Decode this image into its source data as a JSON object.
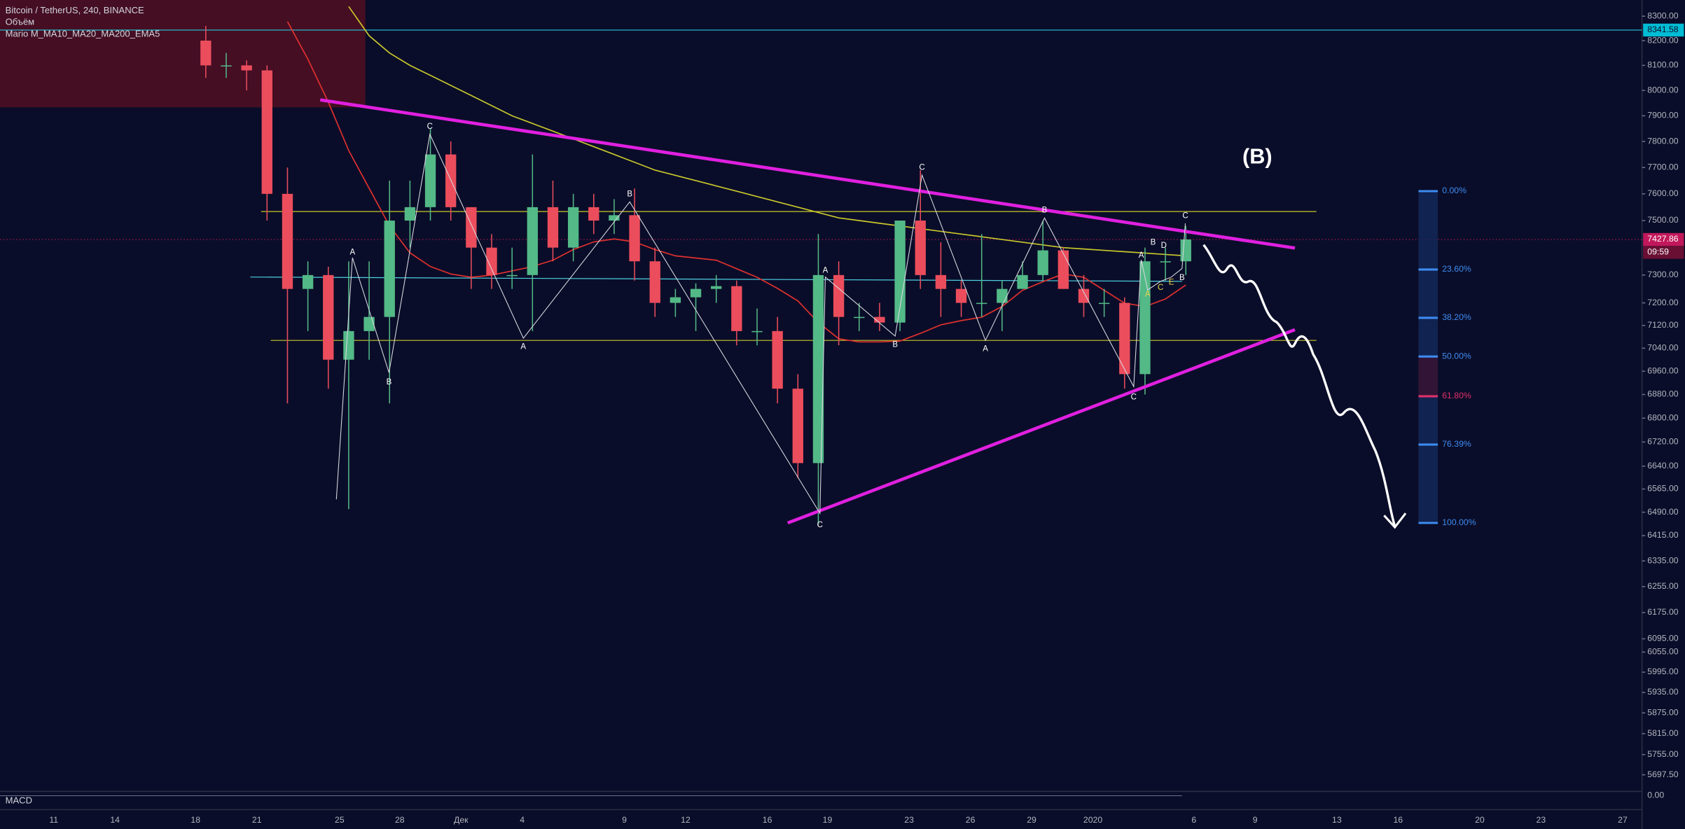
{
  "chart_data": {
    "type": "candlestick",
    "title": "Bitcoin / TetherUS, 240, BINANCE",
    "subtitle": "Объём",
    "indicator_label": "Mario M_MA10_MA20_MA200_EMA5",
    "annotation": "(B)",
    "lower_pane_label": "MACD",
    "lower_pane_tick": "0.00",
    "up_color": "#53b987",
    "down_color": "#eb4d5c",
    "open": [
      8200,
      8100,
      8100,
      8080,
      7600,
      7250,
      7300,
      7000,
      7100,
      7150,
      7500,
      7550,
      7750,
      7550,
      7400,
      7300,
      7300,
      7550,
      7400,
      7550,
      7500,
      7520,
      7350,
      7200,
      7220,
      7250,
      7260,
      7100,
      7100,
      6900,
      6650,
      7300,
      7150,
      7150,
      7130,
      7500,
      7300,
      7250,
      7200,
      7200,
      7250,
      7300,
      7390,
      7250,
      7200,
      7200,
      6950,
      7350,
      7350
    ],
    "high": [
      8260,
      8150,
      8120,
      8100,
      7700,
      7350,
      7330,
      7350,
      7350,
      7650,
      7650,
      7850,
      7800,
      7550,
      7450,
      7400,
      7750,
      7650,
      7600,
      7600,
      7580,
      7620,
      7400,
      7250,
      7270,
      7300,
      7280,
      7180,
      7150,
      6950,
      7450,
      7350,
      7200,
      7200,
      7500,
      7690,
      7420,
      7280,
      7450,
      7280,
      7350,
      7500,
      7400,
      7300,
      7250,
      7220,
      7400,
      7400,
      7480
    ],
    "low": [
      8050,
      8050,
      8000,
      7500,
      6850,
      7100,
      6900,
      6500,
      7000,
      6850,
      7400,
      7500,
      7500,
      7250,
      7250,
      7250,
      7100,
      7350,
      7350,
      7450,
      7450,
      7280,
      7150,
      7150,
      7100,
      7200,
      7050,
      7050,
      6850,
      6600,
      6450,
      7050,
      7100,
      7100,
      7100,
      7250,
      7150,
      7150,
      7150,
      7100,
      7250,
      7280,
      7250,
      7150,
      7150,
      6900,
      6880,
      7280,
      7300
    ],
    "close": [
      8100,
      8100,
      8080,
      7600,
      7250,
      7300,
      7000,
      7100,
      7150,
      7500,
      7550,
      7750,
      7550,
      7400,
      7300,
      7300,
      7550,
      7400,
      7550,
      7500,
      7520,
      7350,
      7200,
      7220,
      7250,
      7260,
      7100,
      7100,
      6900,
      6650,
      7300,
      7150,
      7150,
      7130,
      7500,
      7300,
      7250,
      7200,
      7200,
      7250,
      7300,
      7390,
      7250,
      7200,
      7200,
      6950,
      7350,
      7350,
      7430
    ],
    "lines": [
      {
        "color": "#e0312f",
        "values": [
          null,
          null,
          null,
          null,
          8278,
          8125,
          7954,
          7765,
          7621,
          7480,
          7381,
          7331,
          7304,
          7292,
          7300,
          7315,
          7331,
          7354,
          7393,
          7421,
          7432,
          7421,
          7393,
          7370,
          7362,
          7354,
          7323,
          7292,
          7252,
          7207,
          7130,
          7073,
          7062,
          7062,
          7065,
          7092,
          7122,
          7137,
          7149,
          7187,
          7245,
          7276,
          7304,
          7292,
          7245,
          7199,
          7187,
          7214,
          7264
        ]
      },
      {
        "color": "#c9c72c",
        "values": [
          null,
          null,
          null,
          null,
          null,
          null,
          null,
          8340,
          8220,
          8150,
          8100,
          8060,
          8020,
          7980,
          7940,
          7900,
          7870,
          7840,
          7810,
          7780,
          7750,
          7720,
          7690,
          7670,
          7650,
          7630,
          7610,
          7590,
          7570,
          7550,
          7530,
          7510,
          7500,
          7490,
          7480,
          7470,
          7460,
          7450,
          7440,
          7430,
          7420,
          7410,
          7400,
          7395,
          7390,
          7385,
          7380,
          7375,
          7370
        ]
      }
    ],
    "log_scale": true,
    "grid": false,
    "ylim": [
      5690,
      8367
    ],
    "yticks": [
      {
        "value": 8300,
        "label": "8300.00"
      },
      {
        "value": 8200,
        "label": "8200.00"
      },
      {
        "value": 8100,
        "label": "8100.00"
      },
      {
        "value": 8000,
        "label": "8000.00"
      },
      {
        "value": 7900,
        "label": "7900.00"
      },
      {
        "value": 7800,
        "label": "7800.00"
      },
      {
        "value": 7700,
        "label": "7700.00"
      },
      {
        "value": 7600,
        "label": "7600.00"
      },
      {
        "value": 7500,
        "label": "7500.00"
      },
      {
        "value": 7300,
        "label": "7300.00"
      },
      {
        "value": 7200,
        "label": "7200.00"
      },
      {
        "value": 7120,
        "label": "7120.00"
      },
      {
        "value": 7040,
        "label": "7040.00"
      },
      {
        "value": 6960,
        "label": "6960.00"
      },
      {
        "value": 6880,
        "label": "6880.00"
      },
      {
        "value": 6800,
        "label": "6800.00"
      },
      {
        "value": 6720,
        "label": "6720.00"
      },
      {
        "value": 6640,
        "label": "6640.00"
      },
      {
        "value": 6565,
        "label": "6565.00"
      },
      {
        "value": 6490,
        "label": "6490.00"
      },
      {
        "value": 6415,
        "label": "6415.00"
      },
      {
        "value": 6335,
        "label": "6335.00"
      },
      {
        "value": 6255,
        "label": "6255.00"
      },
      {
        "value": 6175,
        "label": "6175.00"
      },
      {
        "value": 6095,
        "label": "6095.00"
      },
      {
        "value": 6055,
        "label": "6055.00"
      },
      {
        "value": 5995,
        "label": "5995.00"
      },
      {
        "value": 5935,
        "label": "5935.00"
      },
      {
        "value": 5875,
        "label": "5875.00"
      },
      {
        "value": 5815,
        "label": "5815.00"
      },
      {
        "value": 5755,
        "label": "5755.00"
      },
      {
        "value": 5697.5,
        "label": "5697.50"
      }
    ],
    "x_labels": [
      "11",
      "14",
      "18",
      "21",
      "25",
      "28",
      "Дек",
      "4",
      "9",
      "12",
      "16",
      "19",
      "23",
      "26",
      "29",
      "2020",
      "6",
      "9",
      "13",
      "16",
      "20",
      "23",
      "27"
    ],
    "price_tags": [
      "8341.58",
      "7427.86",
      "09:59"
    ],
    "fib_levels": [
      "0.00%",
      "23.60%",
      "38.20%",
      "50.00%",
      "61.80%",
      "76.39%",
      "100.00%"
    ],
    "wave_labels": [
      "A",
      "B",
      "C",
      "A",
      "B",
      "C",
      "A",
      "B",
      "C",
      "A",
      "B",
      "C",
      "A",
      "B",
      "D",
      "A",
      "C",
      "E",
      "B",
      "C"
    ]
  }
}
